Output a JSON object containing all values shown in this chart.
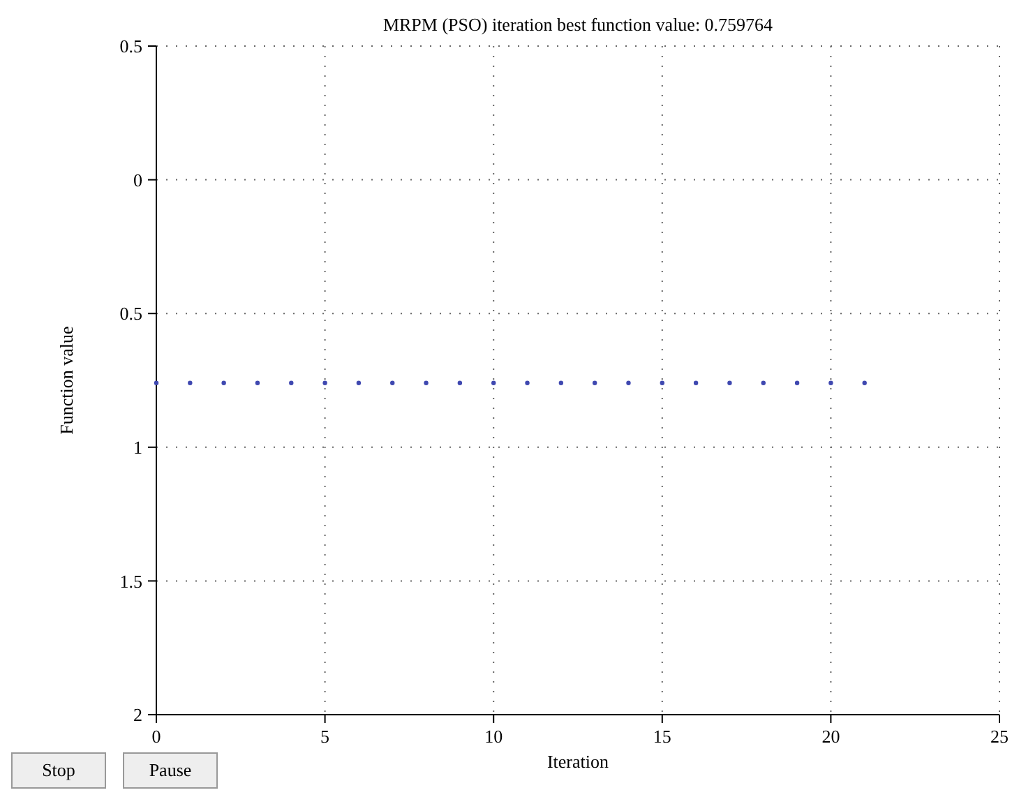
{
  "chart_data": {
    "type": "scatter",
    "title": "MRPM (PSO) iteration best function value: 0.759764",
    "xlabel": "Iteration",
    "ylabel": "Function value",
    "x": [
      0,
      1,
      2,
      3,
      4,
      5,
      6,
      7,
      8,
      9,
      10,
      11,
      12,
      13,
      14,
      15,
      16,
      17,
      18,
      19,
      20,
      21
    ],
    "series": [
      {
        "color": "#3f48b0",
        "values": [
          0.759764,
          0.759764,
          0.759764,
          0.759764,
          0.759764,
          0.759764,
          0.759764,
          0.759764,
          0.759764,
          0.759764,
          0.759764,
          0.759764,
          0.759764,
          0.759764,
          0.759764,
          0.759764,
          0.759764,
          0.759764,
          0.759764,
          0.759764,
          0.759764,
          0.759764
        ]
      }
    ],
    "xlim": [
      0,
      25
    ],
    "xticks": [
      0,
      5,
      10,
      15,
      20,
      25
    ],
    "ylim": [
      2,
      -0.5
    ],
    "yticks": [
      {
        "value": -0.5,
        "label": "0.5"
      },
      0,
      0.5,
      1,
      1.5,
      2
    ],
    "grid": true,
    "marker": "circle",
    "annotations": [
      "Stop",
      "Pause"
    ]
  }
}
